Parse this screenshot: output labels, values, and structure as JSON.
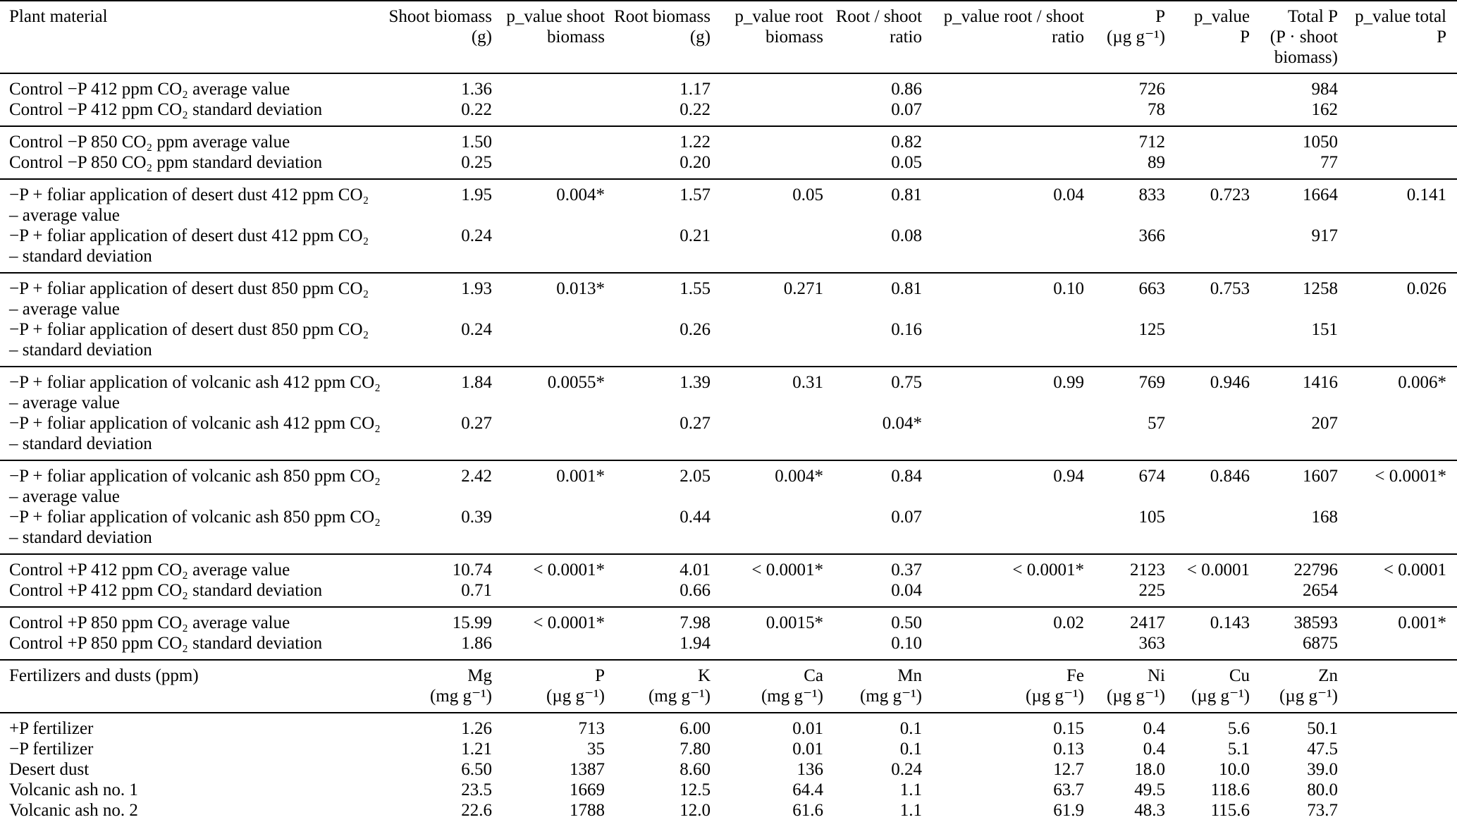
{
  "table": {
    "columns": [
      {
        "label": "Plant material"
      },
      {
        "label": "Shoot biomass\n(g)"
      },
      {
        "label": "p_value shoot\nbiomass"
      },
      {
        "label": "Root biomass\n(g)"
      },
      {
        "label": "p_value root\nbiomass"
      },
      {
        "label": "Root / shoot\nratio"
      },
      {
        "label": "p_value root / shoot\nratio"
      },
      {
        "label": "P\n(µg g⁻¹)"
      },
      {
        "label": "p_value\nP"
      },
      {
        "label": "Total P\n(P · shoot\nbiomass)"
      },
      {
        "label": "p_value total\nP"
      }
    ],
    "groups": [
      {
        "rows": [
          {
            "label": "Control −P 412 ppm CO₂ average value",
            "values": [
              "1.36",
              "",
              "1.17",
              "",
              "0.86",
              "",
              "726",
              "",
              "984",
              ""
            ]
          },
          {
            "label": "Control −P 412 ppm CO₂ standard deviation",
            "values": [
              "0.22",
              "",
              "0.22",
              "",
              "0.07",
              "",
              "78",
              "",
              "162",
              ""
            ]
          }
        ]
      },
      {
        "rows": [
          {
            "label": "Control −P 850 CO₂ ppm average value",
            "values": [
              "1.50",
              "",
              "1.22",
              "",
              "0.82",
              "",
              "712",
              "",
              "1050",
              ""
            ]
          },
          {
            "label": "Control −P 850 CO₂ ppm standard deviation",
            "values": [
              "0.25",
              "",
              "0.20",
              "",
              "0.05",
              "",
              "89",
              "",
              "77",
              ""
            ]
          }
        ]
      },
      {
        "rows": [
          {
            "label": "−P + foliar application of desert dust 412 ppm CO₂\n– average value",
            "values": [
              "1.95",
              "0.004*",
              "1.57",
              "0.05",
              "0.81",
              "0.04",
              "833",
              "0.723",
              "1664",
              "0.141"
            ]
          },
          {
            "label": "−P + foliar application of desert dust 412 ppm CO₂\n– standard deviation",
            "values": [
              "0.24",
              "",
              "0.21",
              "",
              "0.08",
              "",
              "366",
              "",
              "917",
              ""
            ]
          }
        ]
      },
      {
        "rows": [
          {
            "label": "−P + foliar application of desert dust 850 ppm CO₂\n– average value",
            "values": [
              "1.93",
              "0.013*",
              "1.55",
              "0.271",
              "0.81",
              "0.10",
              "663",
              "0.753",
              "1258",
              "0.026"
            ]
          },
          {
            "label": "−P + foliar application of desert dust 850 ppm CO₂\n– standard deviation",
            "values": [
              "0.24",
              "",
              "0.26",
              "",
              "0.16",
              "",
              "125",
              "",
              "151",
              ""
            ]
          }
        ]
      },
      {
        "rows": [
          {
            "label": "−P + foliar application of volcanic ash 412 ppm CO₂\n– average value",
            "values": [
              "1.84",
              "0.0055*",
              "1.39",
              "0.31",
              "0.75",
              "0.99",
              "769",
              "0.946",
              "1416",
              "0.006*"
            ]
          },
          {
            "label": "−P + foliar application of volcanic ash 412 ppm CO₂\n– standard deviation",
            "values": [
              "0.27",
              "",
              "0.27",
              "",
              "0.04*",
              "",
              "57",
              "",
              "207",
              ""
            ]
          }
        ]
      },
      {
        "rows": [
          {
            "label": "−P + foliar application of volcanic ash 850 ppm CO₂\n– average value",
            "values": [
              "2.42",
              "0.001*",
              "2.05",
              "0.004*",
              "0.84",
              "0.94",
              "674",
              "0.846",
              "1607",
              "< 0.0001*"
            ]
          },
          {
            "label": "−P + foliar application of volcanic ash 850 ppm CO₂\n– standard deviation",
            "values": [
              "0.39",
              "",
              "0.44",
              "",
              "0.07",
              "",
              "105",
              "",
              "168",
              ""
            ]
          }
        ]
      },
      {
        "rows": [
          {
            "label": "Control +P 412 ppm CO₂ average value",
            "values": [
              "10.74",
              "< 0.0001*",
              "4.01",
              "< 0.0001*",
              "0.37",
              "< 0.0001*",
              "2123",
              "< 0.0001",
              "22796",
              "< 0.0001"
            ]
          },
          {
            "label": "Control +P 412 ppm CO₂ standard deviation",
            "values": [
              "0.71",
              "",
              "0.66",
              "",
              "0.04",
              "",
              "225",
              "",
              "2654",
              ""
            ]
          }
        ]
      },
      {
        "rows": [
          {
            "label": "Control +P 850 ppm CO₂ average value",
            "values": [
              "15.99",
              "< 0.0001*",
              "7.98",
              "0.0015*",
              "0.50",
              "0.02",
              "2417",
              "0.143",
              "38593",
              "0.001*"
            ]
          },
          {
            "label": "Control +P 850 ppm CO₂ standard deviation",
            "values": [
              "1.86",
              "",
              "1.94",
              "",
              "0.10",
              "",
              "363",
              "",
              "6875",
              ""
            ]
          }
        ]
      }
    ]
  },
  "fertilizers": {
    "header": {
      "label": "Fertilizers and dusts (ppm)",
      "columns": [
        "Mg\n(mg g⁻¹)",
        "P\n(µg g⁻¹)",
        "K\n(mg g⁻¹)",
        "Ca\n(mg g⁻¹)",
        "Mn\n(mg g⁻¹)",
        "Fe\n(µg g⁻¹)",
        "Ni\n(µg g⁻¹)",
        "Cu\n(µg g⁻¹)",
        "Zn\n(µg g⁻¹)",
        ""
      ]
    },
    "rows": [
      {
        "label": "+P fertilizer",
        "values": [
          "1.26",
          "713",
          "6.00",
          "0.01",
          "0.1",
          "0.15",
          "0.4",
          "5.6",
          "50.1",
          ""
        ]
      },
      {
        "label": "−P fertilizer",
        "values": [
          "1.21",
          "35",
          "7.80",
          "0.01",
          "0.1",
          "0.13",
          "0.4",
          "5.1",
          "47.5",
          ""
        ]
      },
      {
        "label": "Desert dust",
        "values": [
          "6.50",
          "1387",
          "8.60",
          "136",
          "0.24",
          "12.7",
          "18.0",
          "10.0",
          "39.0",
          ""
        ]
      },
      {
        "label": "Volcanic ash no. 1",
        "values": [
          "23.5",
          "1669",
          "12.5",
          "64.4",
          "1.1",
          "63.7",
          "49.5",
          "118.6",
          "80.0",
          ""
        ]
      },
      {
        "label": "Volcanic ash no. 2",
        "values": [
          "22.6",
          "1788",
          "12.0",
          "61.6",
          "1.1",
          "61.9",
          "48.3",
          "115.6",
          "73.7",
          ""
        ]
      }
    ]
  }
}
